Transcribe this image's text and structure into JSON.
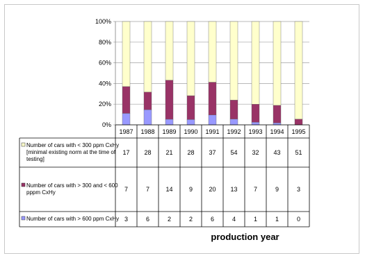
{
  "chart_data": {
    "type": "bar",
    "stacked": true,
    "normalized": true,
    "categories": [
      "1987",
      "1988",
      "1989",
      "1990",
      "1991",
      "1992",
      "1993",
      "1994",
      "1995"
    ],
    "series": [
      {
        "name": "Number of cars with > 600 ppm CxHy",
        "color": "#9999ff",
        "values": [
          3,
          6,
          2,
          2,
          6,
          4,
          1,
          1,
          0
        ]
      },
      {
        "name": "Number of cars with > 300 and < 600 pppm CxHy",
        "color": "#993366",
        "values": [
          7,
          7,
          14,
          9,
          20,
          13,
          7,
          9,
          3
        ]
      },
      {
        "name": "Number of cars with < 300 ppm CxHy [minimal existing norm at the time of testing]",
        "color": "#ffffcc",
        "values": [
          17,
          28,
          21,
          28,
          37,
          54,
          32,
          43,
          51
        ]
      }
    ],
    "table_rows": [
      {
        "legend_lines": [
          "Number of cars with < 300 ppm CxHy",
          "[minimal existing norm at the time of",
          "testing]"
        ],
        "series_index": 2
      },
      {
        "legend_lines": [
          "Number of cars with > 300 and < 600",
          "pppm CxHy"
        ],
        "series_index": 1
      },
      {
        "legend_lines": [
          "Number of cars with > 600 ppm CxHy"
        ],
        "series_index": 0
      }
    ],
    "y_tick_labels": [
      "0%",
      "20%",
      "40%",
      "60%",
      "80%",
      "100%"
    ],
    "ylim": [
      0,
      100
    ],
    "xlabel": "production year",
    "grid": true
  }
}
